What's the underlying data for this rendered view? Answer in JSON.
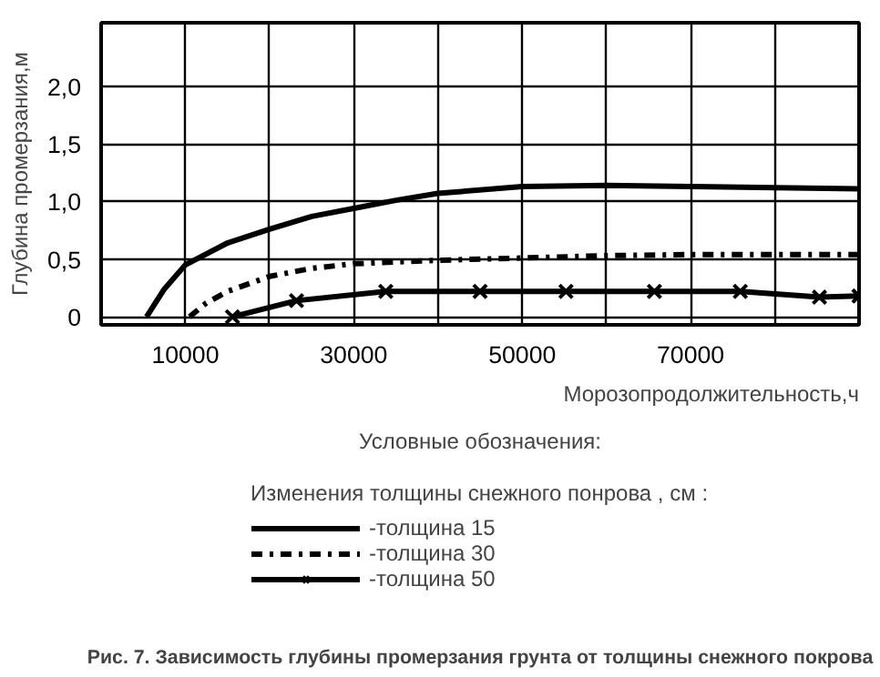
{
  "chart_data": {
    "type": "line",
    "title": "Рис. 7. Зависимость глубины промерзания грунта от толщины снежного покрова",
    "xlabel": "Морозопродолжительность,ч",
    "ylabel": "Глубина промерзания,м",
    "legend_title": "Изменения толщины снежного понрова , см :",
    "annotations": [
      "Условные обозначения:"
    ],
    "xlim": [
      0,
      90000
    ],
    "ylim": [
      -0.07,
      2.55
    ],
    "xticks": [
      10000,
      {
        "value": 20000,
        "label": null
      },
      30000,
      {
        "value": 40000,
        "label": null
      },
      50000,
      {
        "value": 60000,
        "label": null
      },
      70000,
      {
        "value": 80000,
        "label": null
      },
      {
        "value": 90000,
        "label": null
      }
    ],
    "yticks": [
      0,
      {
        "value": 0.5,
        "label": "0,5"
      },
      {
        "value": 1.0,
        "label": "1,0"
      },
      {
        "value": 1.5,
        "label": "1,5"
      },
      {
        "value": 2.0,
        "label": "2,0"
      }
    ],
    "grid": true,
    "legend": "bottom",
    "series": [
      {
        "name": "-толщина 15",
        "color": "#000000",
        "line_style": "solid",
        "marker": "none",
        "x": [
          5400,
          7500,
          10000,
          15000,
          20000,
          25000,
          30000,
          35000,
          40000,
          50000,
          60000,
          70000,
          80000,
          90000
        ],
        "values": [
          0,
          0.24,
          0.45,
          0.64,
          0.76,
          0.87,
          0.94,
          1.01,
          1.07,
          1.13,
          1.14,
          1.13,
          1.12,
          1.11
        ]
      },
      {
        "name": "-толщина 30",
        "color": "#000000",
        "line_style": "dashdot",
        "marker": "none",
        "x": [
          10500,
          12500,
          15000,
          20000,
          25000,
          30000,
          40000,
          50000,
          60000,
          70000,
          80000,
          90000
        ],
        "values": [
          0,
          0.12,
          0.22,
          0.35,
          0.42,
          0.46,
          0.49,
          0.51,
          0.53,
          0.54,
          0.54,
          0.54
        ]
      },
      {
        "name": "-толщина 50",
        "color": "#000000",
        "line_style": "solid",
        "marker": "cross",
        "x": [
          15600,
          23200,
          33800,
          45000,
          55200,
          65700,
          75900,
          85300,
          90000
        ],
        "values": [
          0,
          0.14,
          0.22,
          0.22,
          0.22,
          0.22,
          0.22,
          0.17,
          0.18
        ]
      }
    ]
  }
}
